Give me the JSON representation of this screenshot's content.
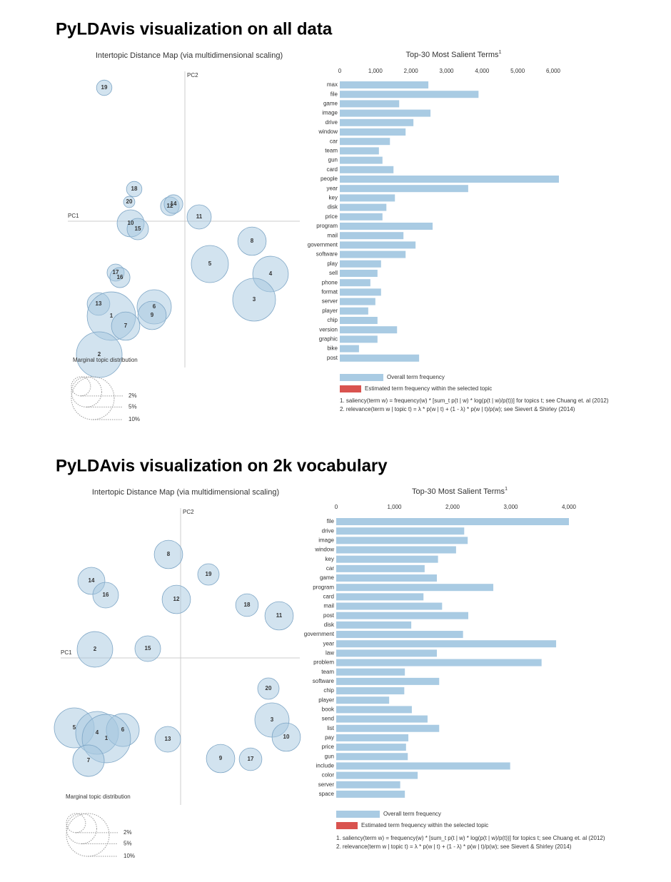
{
  "headings": [
    "PyLDAvis visualization on all data",
    "PyLDAvis visualization on 2k vocabulary"
  ],
  "chart_data": [
    {
      "type": "bubble",
      "title": "Intertopic Distance Map (via multidimensional scaling)",
      "xlabel": "PC1",
      "ylabel": "PC2",
      "color": "#a6c8e0",
      "stroke": "#7ea6c6",
      "labels": [
        "19",
        "18",
        "20",
        "12",
        "14",
        "11",
        "10",
        "15",
        "8",
        "5",
        "4",
        "3",
        "17",
        "16",
        "13",
        "6",
        "9",
        "1",
        "7",
        "2"
      ],
      "x": [
        -1.13,
        -0.71,
        -0.78,
        -0.21,
        -0.16,
        0.2,
        -0.76,
        -0.66,
        0.94,
        0.35,
        1.2,
        0.97,
        -0.97,
        -0.91,
        -1.21,
        -0.43,
        -0.46,
        -1.03,
        -0.83,
        -1.2
      ],
      "y": [
        1.87,
        0.45,
        0.27,
        0.21,
        0.24,
        0.06,
        -0.03,
        -0.11,
        -0.28,
        -0.6,
        -0.74,
        -1.1,
        -0.72,
        -0.79,
        -1.16,
        -1.2,
        -1.32,
        -1.33,
        -1.47,
        -1.87
      ],
      "sizes": [
        1.3,
        1.3,
        0.7,
        1.9,
        1.9,
        3.2,
        4.0,
        2.5,
        4.4,
        7.5,
        6.9,
        10.0,
        1.6,
        2.2,
        2.8,
        6.4,
        4.4,
        12.8,
        4.4,
        11.4
      ],
      "xlim": [
        -1.59,
        1.61
      ],
      "ylim": [
        -2.05,
        2.1
      ],
      "size_legend": {
        "title": "Marginal topic distribution",
        "ticks": [
          {
            "value": 2,
            "label": "2%"
          },
          {
            "value": 5,
            "label": "5%"
          },
          {
            "value": 10,
            "label": "10%"
          }
        ]
      }
    },
    {
      "type": "bar",
      "title": "Top-30 Most Salient Terms",
      "title_superscript": "1",
      "categories": [
        "max",
        "file",
        "game",
        "image",
        "drive",
        "window",
        "car",
        "team",
        "gun",
        "card",
        "people",
        "year",
        "key",
        "disk",
        "price",
        "program",
        "mail",
        "government",
        "software",
        "play",
        "sell",
        "phone",
        "format",
        "server",
        "player",
        "chip",
        "version",
        "graphic",
        "bike",
        "post"
      ],
      "series": [
        {
          "name": "Overall term frequency",
          "color": "#a9cbe3",
          "values": [
            2490,
            3900,
            1670,
            2550,
            2070,
            1850,
            1410,
            1100,
            1200,
            1510,
            6160,
            3610,
            1550,
            1310,
            1200,
            2610,
            1790,
            2130,
            1850,
            1160,
            1060,
            860,
            1160,
            1000,
            800,
            1060,
            1610,
            1060,
            540,
            2230
          ]
        }
      ],
      "legend_extra": {
        "name": "Estimated term frequency within the selected topic",
        "color": "#d9534f"
      },
      "xlim": [
        0,
        6000
      ],
      "xticks": [
        0,
        {
          "value": 1000,
          "label": "1,000"
        },
        {
          "value": 2000,
          "label": "2,000"
        },
        {
          "value": 3000,
          "label": "3,000"
        },
        {
          "value": 4000,
          "label": "4,000"
        },
        {
          "value": 5000,
          "label": "5,000"
        },
        {
          "value": 6000,
          "label": "6,000"
        }
      ],
      "footnotes": [
        "1. saliency(term w) = frequency(w) * [sum_t p(t | w) * log(p(t | w)/p(t))] for topics t; see Chuang et. al (2012)",
        "2. relevance(term w | topic t) = λ * p(w | t) + (1 - λ) * p(w | t)/p(w); see Sievert & Shirley (2014)"
      ]
    },
    {
      "type": "bubble",
      "title": "Intertopic Distance Map (via multidimensional scaling)",
      "xlabel": "PC1",
      "ylabel": "PC2",
      "color": "#a6c8e0",
      "stroke": "#7ea6c6",
      "labels": [
        "8",
        "19",
        "14",
        "16",
        "12",
        "18",
        "11",
        "2",
        "15",
        "20",
        "3",
        "10",
        "5",
        "4",
        "6",
        "1",
        "7",
        "13",
        "9",
        "17"
      ],
      "x": [
        -0.17,
        0.39,
        -1.25,
        -1.05,
        -0.06,
        0.93,
        1.38,
        -1.2,
        -0.46,
        1.23,
        1.28,
        1.48,
        -1.49,
        -1.17,
        -0.81,
        -1.04,
        -1.29,
        -0.18,
        0.56,
        0.98
      ],
      "y": [
        1.45,
        1.17,
        1.08,
        0.88,
        0.82,
        0.74,
        0.59,
        0.12,
        0.13,
        -0.43,
        -0.87,
        -1.11,
        -0.98,
        -1.05,
        -1.01,
        -1.13,
        -1.44,
        -1.14,
        -1.41,
        -1.42
      ],
      "sizes": [
        4.4,
        2.5,
        4.0,
        3.6,
        4.4,
        2.8,
        4.4,
        6.9,
        3.6,
        2.5,
        6.4,
        4.4,
        8.7,
        10.0,
        5.9,
        12.8,
        5.4,
        3.6,
        4.4,
        2.8
      ],
      "xlim": [
        -1.63,
        1.67
      ],
      "ylim": [
        -2.06,
        2.1
      ],
      "size_legend": {
        "title": "Marginal topic distribution",
        "ticks": [
          {
            "value": 2,
            "label": "2%"
          },
          {
            "value": 5,
            "label": "5%"
          },
          {
            "value": 10,
            "label": "10%"
          }
        ]
      }
    },
    {
      "type": "bar",
      "title": "Top-30 Most Salient Terms",
      "title_superscript": "1",
      "categories": [
        "file",
        "drive",
        "image",
        "window",
        "key",
        "car",
        "game",
        "program",
        "card",
        "mail",
        "post",
        "disk",
        "government",
        "year",
        "law",
        "problem",
        "team",
        "software",
        "chip",
        "player",
        "book",
        "send",
        "list",
        "pay",
        "price",
        "gun",
        "include",
        "color",
        "server",
        "space"
      ],
      "series": [
        {
          "name": "Overall term frequency",
          "color": "#a9cbe3",
          "values": [
            4000,
            2200,
            2260,
            2060,
            1750,
            1520,
            1730,
            2700,
            1500,
            1820,
            2270,
            1290,
            2180,
            3780,
            1730,
            3530,
            1180,
            1770,
            1170,
            910,
            1300,
            1570,
            1770,
            1240,
            1200,
            1230,
            2990,
            1400,
            1100,
            1180
          ]
        }
      ],
      "legend_extra": {
        "name": "Estimated term frequency within the selected topic",
        "color": "#d9534f"
      },
      "xlim": [
        0,
        4000
      ],
      "xticks": [
        0,
        {
          "value": 1000,
          "label": "1,000"
        },
        {
          "value": 2000,
          "label": "2,000"
        },
        {
          "value": 3000,
          "label": "3,000"
        },
        {
          "value": 4000,
          "label": "4,000"
        }
      ],
      "footnotes": [
        "1. saliency(term w) = frequency(w) * [sum_t p(t | w) * log(p(t | w)/p(t))] for topics t; see Chuang et. al (2012)",
        "2. relevance(term w | topic t) = λ * p(w | t) + (1 - λ) * p(w | t)/p(w); see Sievert & Shirley (2014)"
      ]
    }
  ]
}
